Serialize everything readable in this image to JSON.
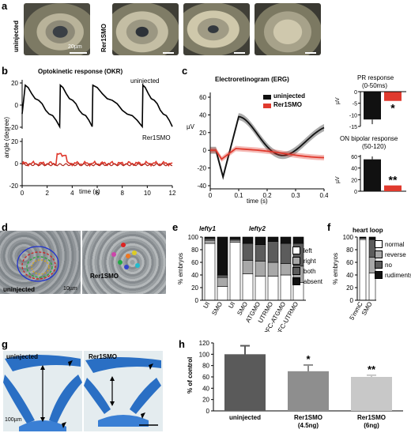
{
  "panel_letters": [
    "a",
    "b",
    "c",
    "d",
    "e",
    "f",
    "g",
    "h"
  ],
  "panel_a": {
    "label_left": "uninjected",
    "label_right": "Rer1SMO",
    "scale": "20µm"
  },
  "panel_b": {
    "title": "Optokinetic response (OKR)",
    "label_top": "uninjected",
    "label_bottom": "Rer1SMO",
    "ylabel": "angle (degree)",
    "xlabel": "time (s)",
    "yticks_top": [
      "20",
      "0",
      "-20"
    ],
    "yticks_bottom": [
      "20",
      "0",
      "-20"
    ],
    "xticks": [
      "0",
      "2",
      "4",
      "6",
      "8",
      "10",
      "12"
    ],
    "colors": {
      "uninjected": "#000000",
      "rer1smo": "#e03a2e"
    }
  },
  "panel_c": {
    "title": "Electroretinogram (ERG)",
    "ylabel": "µV",
    "xlabel": "time (s)",
    "yticks": [
      "60",
      "40",
      "20",
      "0",
      "-20",
      "-40"
    ],
    "xticks": [
      "0",
      "0.1",
      "0.2",
      "0.3",
      "0.4"
    ],
    "legend": [
      "uninjected",
      "Rer1SMO"
    ],
    "pr_title": "PR response",
    "pr_sub": "(0-50ms)",
    "pr_yticks": [
      "0",
      "-5",
      "-10",
      "-15"
    ],
    "pr_unit": "µV",
    "pr_sig": "*",
    "on_title": "ON bipolar response",
    "on_sub": "(50-120)",
    "on_yticks": [
      "60",
      "40",
      "20",
      "0"
    ],
    "on_unit": "µV",
    "on_sig": "**"
  },
  "panel_d": {
    "label_left": "uninjected",
    "label_right": "Rer1SMO",
    "scale": "10µm"
  },
  "panel_e": {
    "group1": "lefty1",
    "group2": "lefty2",
    "ylabel": "% embryos",
    "yticks": [
      "100",
      "80",
      "60",
      "40",
      "20",
      "0"
    ],
    "legend": [
      "left",
      "right",
      "both",
      "absent"
    ],
    "legend_colors": [
      "#ffffff",
      "#a8a8a8",
      "#5c5c5c",
      "#111111"
    ]
  },
  "panel_f": {
    "title": "heart loop",
    "ylabel": "% embryos",
    "yticks": [
      "100",
      "80",
      "60",
      "40",
      "20",
      "0"
    ],
    "legend": [
      "normal",
      "reverse",
      "no",
      "rudiments"
    ],
    "legend_colors": [
      "#ffffff",
      "#a8a8a8",
      "#5c5c5c",
      "#111111"
    ]
  },
  "panel_g": {
    "label_left": "uninjected",
    "label_right": "Rer1SMO",
    "scale": "100µm"
  },
  "chart_data": [
    {
      "type": "bar",
      "id": "e",
      "ylabel": "% embryos",
      "ylim": [
        0,
        100
      ],
      "categories": [
        "UI",
        "SMO",
        "UI",
        "SMO",
        "ATGMO",
        "UTRMO",
        "DFC-ATGMO",
        "DFC-UTRMO"
      ],
      "series": [
        {
          "name": "left",
          "values": [
            90,
            22,
            92,
            42,
            38,
            38,
            40,
            28
          ]
        },
        {
          "name": "right",
          "values": [
            5,
            14,
            3,
            21,
            24,
            22,
            18,
            26
          ]
        },
        {
          "name": "both",
          "values": [
            3,
            4,
            2,
            27,
            26,
            33,
            32,
            36
          ]
        },
        {
          "name": "absent",
          "values": [
            2,
            60,
            3,
            10,
            12,
            7,
            10,
            10
          ]
        }
      ]
    },
    {
      "type": "bar",
      "id": "f",
      "ylabel": "% embryos",
      "ylim": [
        0,
        100
      ],
      "categories": [
        "5'mmC",
        "SMO"
      ],
      "series": [
        {
          "name": "normal",
          "values": [
            96,
            43
          ]
        },
        {
          "name": "reverse",
          "values": [
            2,
            25
          ]
        },
        {
          "name": "no",
          "values": [
            1,
            28
          ]
        },
        {
          "name": "rudiments",
          "values": [
            1,
            4
          ]
        }
      ]
    },
    {
      "type": "bar",
      "id": "h",
      "ylabel": "% of control",
      "ylim": [
        0,
        120
      ],
      "yticks": [
        "0",
        "20",
        "40",
        "60",
        "80",
        "100",
        "120"
      ],
      "categories": [
        "uninjected",
        "Rer1SMO\n(4.5ng)",
        "Rer1SMO\n(6ng)"
      ],
      "cat_line1": [
        "uninjected",
        "Rer1SMO",
        "Rer1SMO"
      ],
      "cat_line2": [
        "",
        "(4.5ng)",
        "(6ng)"
      ],
      "values": [
        100,
        70,
        60
      ],
      "errors": [
        15,
        11,
        3
      ],
      "significance": [
        "",
        "*",
        "**"
      ],
      "colors": [
        "#5a5a5a",
        "#8e8e8e",
        "#c8c8c8"
      ]
    },
    {
      "type": "bar",
      "id": "c-pr",
      "title": "PR response",
      "ylim": [
        -15,
        0
      ],
      "categories": [
        "uninjected",
        "Rer1SMO"
      ],
      "values": [
        -12,
        -4
      ],
      "colors": [
        "#111111",
        "#e03a2e"
      ]
    },
    {
      "type": "bar",
      "id": "c-on",
      "title": "ON bipolar response",
      "ylim": [
        0,
        60
      ],
      "categories": [
        "uninjected",
        "Rer1SMO"
      ],
      "values": [
        55,
        10
      ],
      "colors": [
        "#111111",
        "#e03a2e"
      ]
    }
  ]
}
